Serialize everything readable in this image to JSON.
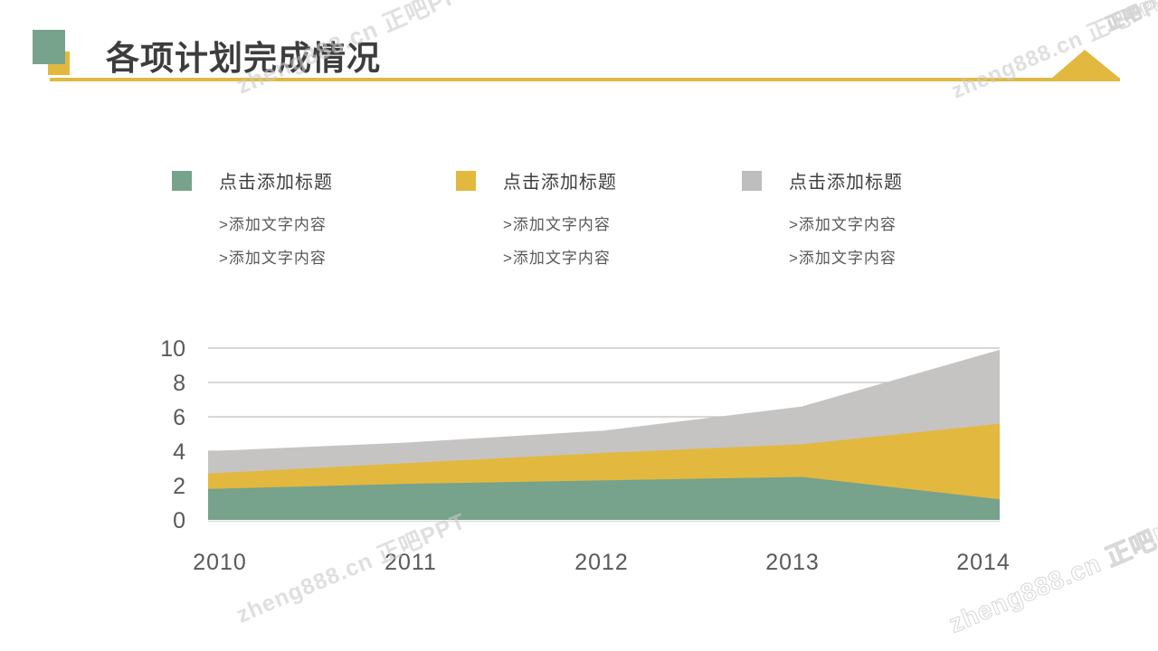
{
  "slide": {
    "title": "各项计划完成情况",
    "accent_green": "#77a28c",
    "accent_yellow": "#e3b83f",
    "accent_gray": "#bebebe"
  },
  "legend_blocks": [
    {
      "color": "#77a28c",
      "title": "点击添加标题",
      "items": [
        ">添加文字内容",
        ">添加文字内容"
      ]
    },
    {
      "color": "#e3b83f",
      "title": "点击添加标题",
      "items": [
        ">添加文字内容",
        ">添加文字内容"
      ]
    },
    {
      "color": "#bebebe",
      "title": "点击添加标题",
      "items": [
        ">添加文字内容",
        ">添加文字内容"
      ]
    }
  ],
  "chart_data": {
    "type": "area",
    "stacked": true,
    "categories": [
      "2010",
      "2011",
      "2012",
      "2013",
      "2014"
    ],
    "series": [
      {
        "color": "#77a28c",
        "values": [
          1.8,
          2.1,
          2.3,
          2.5,
          1.2
        ]
      },
      {
        "color": "#e3b83f",
        "values": [
          0.9,
          1.2,
          1.6,
          1.9,
          4.4
        ]
      },
      {
        "color": "#c5c4c3",
        "values": [
          1.3,
          1.2,
          1.3,
          2.2,
          4.3
        ]
      }
    ],
    "title": "",
    "xlabel": "",
    "ylabel": "",
    "ylim": [
      0,
      10
    ],
    "yticks": [
      0,
      2,
      4,
      6,
      8,
      10
    ],
    "grid": true,
    "gridline_color": "#c0bfbf",
    "axis_text_color": "#595959",
    "legend_position": "none"
  },
  "watermarks": {
    "full": "zheng888.cn 正吧PPT",
    "short": "正吧PPT"
  }
}
